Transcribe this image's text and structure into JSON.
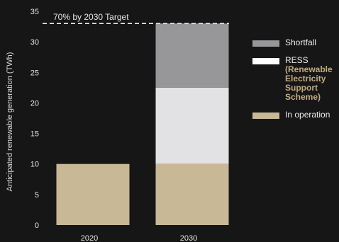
{
  "chart_data": {
    "type": "bar",
    "stacked": true,
    "categories": [
      "2020",
      "2030"
    ],
    "series": [
      {
        "name": "In operation",
        "values": [
          10,
          10
        ],
        "color": "#c8b896"
      },
      {
        "name": "RESS",
        "values": [
          0,
          12.5
        ],
        "color": "#e2e2e4"
      },
      {
        "name": "Shortfall",
        "values": [
          0,
          10.5
        ],
        "color": "#97979a"
      }
    ],
    "ylabel": "Anticipated renewable generation (TWh)",
    "xlabel": "",
    "ylim": [
      0,
      35
    ],
    "yticks": [
      0,
      5,
      10,
      15,
      20,
      25,
      30,
      35
    ],
    "target": {
      "value": 33,
      "label": "70% by 2030 Target"
    },
    "grid": false,
    "legend_position": "right"
  },
  "legend": [
    {
      "label": "Shortfall",
      "sub": "",
      "color": "#97979a"
    },
    {
      "label": "RESS",
      "sub": "(Renewable\nElectricity\nSupport\nScheme)",
      "color": "#ffffff"
    },
    {
      "label": "In operation",
      "sub": "",
      "color": "#c8b896"
    }
  ]
}
